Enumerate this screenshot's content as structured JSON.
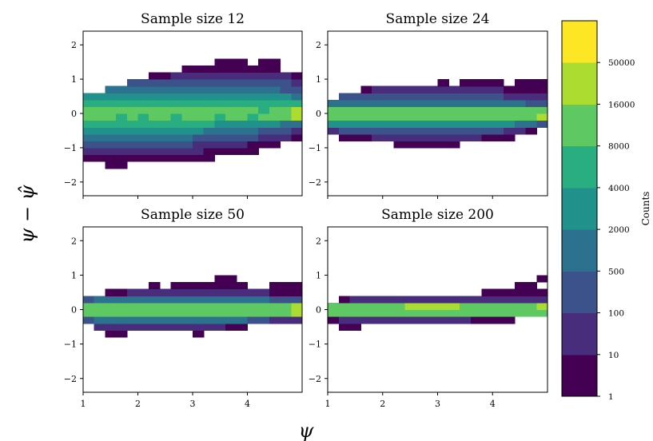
{
  "chart_data": {
    "type": "heatmap",
    "panels": [
      {
        "title": "Sample size 12",
        "x_edges": [
          1.0,
          1.2,
          1.4,
          1.6,
          1.8,
          2.0,
          2.2,
          2.4,
          2.6,
          2.8,
          3.0,
          3.2,
          3.4,
          3.6,
          3.8,
          4.0,
          4.2,
          4.4,
          4.6,
          4.8,
          5.0
        ],
        "y_edges": [
          -1.6,
          -1.4,
          -1.2,
          -1.0,
          -0.8,
          -0.6,
          -0.4,
          -0.2,
          0.0,
          0.2,
          0.4,
          0.6,
          0.8,
          1.0,
          1.2,
          1.4,
          1.6,
          1.8
        ],
        "levels": [
          [
            0,
            0,
            1,
            1,
            0,
            0,
            0,
            0,
            0,
            0,
            0,
            0,
            0,
            0,
            0,
            0,
            0,
            0,
            0,
            0
          ],
          [
            1,
            1,
            1,
            1,
            1,
            1,
            1,
            1,
            1,
            1,
            1,
            1,
            0,
            0,
            0,
            0,
            0,
            0,
            0,
            0
          ],
          [
            2,
            2,
            2,
            2,
            2,
            2,
            2,
            2,
            2,
            2,
            2,
            1,
            1,
            1,
            1,
            1,
            0,
            0,
            0,
            0
          ],
          [
            3,
            3,
            3,
            3,
            3,
            3,
            3,
            3,
            3,
            3,
            2,
            2,
            2,
            2,
            2,
            1,
            1,
            1,
            0,
            0
          ],
          [
            4,
            4,
            4,
            4,
            4,
            4,
            4,
            4,
            4,
            4,
            3,
            3,
            3,
            3,
            3,
            3,
            2,
            2,
            2,
            1
          ],
          [
            5,
            5,
            5,
            5,
            5,
            5,
            5,
            5,
            5,
            5,
            5,
            4,
            4,
            4,
            4,
            4,
            3,
            3,
            3,
            2
          ],
          [
            6,
            6,
            6,
            6,
            6,
            6,
            6,
            6,
            6,
            6,
            6,
            6,
            5,
            5,
            5,
            5,
            5,
            5,
            4,
            4
          ],
          [
            7,
            7,
            7,
            6,
            7,
            6,
            7,
            7,
            6,
            7,
            7,
            7,
            6,
            7,
            7,
            6,
            7,
            7,
            7,
            8
          ],
          [
            7,
            7,
            7,
            7,
            7,
            7,
            7,
            7,
            7,
            7,
            7,
            7,
            7,
            7,
            7,
            7,
            6,
            7,
            7,
            8
          ],
          [
            6,
            6,
            6,
            6,
            6,
            6,
            6,
            6,
            6,
            6,
            6,
            6,
            6,
            6,
            6,
            6,
            6,
            6,
            6,
            6
          ],
          [
            5,
            5,
            5,
            5,
            5,
            5,
            5,
            5,
            5,
            5,
            5,
            5,
            5,
            5,
            5,
            5,
            5,
            5,
            5,
            4
          ],
          [
            0,
            0,
            4,
            4,
            4,
            4,
            4,
            4,
            4,
            4,
            4,
            4,
            4,
            4,
            4,
            4,
            4,
            4,
            3,
            3
          ],
          [
            0,
            0,
            0,
            0,
            3,
            3,
            3,
            3,
            3,
            3,
            3,
            3,
            3,
            3,
            3,
            3,
            3,
            3,
            3,
            2
          ],
          [
            0,
            0,
            0,
            0,
            0,
            0,
            1,
            1,
            2,
            2,
            2,
            2,
            2,
            2,
            2,
            2,
            2,
            2,
            2,
            1
          ],
          [
            0,
            0,
            0,
            0,
            0,
            0,
            0,
            0,
            0,
            1,
            1,
            1,
            1,
            1,
            1,
            1,
            1,
            1,
            0,
            0
          ],
          [
            0,
            0,
            0,
            0,
            0,
            0,
            0,
            0,
            0,
            0,
            0,
            0,
            1,
            1,
            1,
            0,
            1,
            1,
            0,
            0
          ],
          [
            0,
            0,
            0,
            0,
            0,
            0,
            0,
            0,
            0,
            0,
            0,
            0,
            0,
            0,
            0,
            0,
            0,
            0,
            0,
            0
          ]
        ]
      },
      {
        "title": "Sample size 24",
        "x_edges": [
          1.0,
          1.2,
          1.4,
          1.6,
          1.8,
          2.0,
          2.2,
          2.4,
          2.6,
          2.8,
          3.0,
          3.2,
          3.4,
          3.6,
          3.8,
          4.0,
          4.2,
          4.4,
          4.6,
          4.8,
          5.0
        ],
        "y_edges": [
          -1.0,
          -0.8,
          -0.6,
          -0.4,
          -0.2,
          0.0,
          0.2,
          0.4,
          0.6,
          0.8,
          1.0,
          1.2
        ],
        "levels": [
          [
            0,
            0,
            0,
            0,
            0,
            0,
            1,
            1,
            1,
            1,
            1,
            1,
            0,
            0,
            0,
            0,
            0,
            0,
            0,
            0
          ],
          [
            0,
            1,
            1,
            1,
            2,
            2,
            2,
            2,
            2,
            2,
            2,
            2,
            2,
            2,
            1,
            1,
            1,
            0,
            0,
            0
          ],
          [
            2,
            3,
            3,
            3,
            3,
            3,
            3,
            3,
            3,
            3,
            3,
            3,
            3,
            3,
            3,
            3,
            2,
            2,
            1,
            0
          ],
          [
            5,
            5,
            5,
            5,
            5,
            5,
            5,
            5,
            5,
            5,
            5,
            5,
            5,
            5,
            5,
            5,
            5,
            4,
            4,
            3
          ],
          [
            7,
            7,
            7,
            7,
            7,
            7,
            7,
            7,
            7,
            7,
            7,
            7,
            7,
            7,
            7,
            7,
            7,
            7,
            7,
            8
          ],
          [
            7,
            7,
            7,
            7,
            7,
            7,
            7,
            7,
            7,
            7,
            7,
            7,
            7,
            7,
            7,
            7,
            7,
            7,
            7,
            7
          ],
          [
            4,
            4,
            4,
            4,
            4,
            4,
            4,
            4,
            4,
            4,
            4,
            4,
            4,
            4,
            4,
            4,
            4,
            4,
            3,
            3
          ],
          [
            0,
            3,
            3,
            3,
            3,
            3,
            3,
            3,
            3,
            3,
            3,
            3,
            3,
            3,
            3,
            3,
            2,
            2,
            2,
            2
          ],
          [
            0,
            0,
            0,
            1,
            2,
            2,
            2,
            2,
            2,
            2,
            2,
            2,
            2,
            2,
            2,
            2,
            1,
            1,
            1,
            1
          ],
          [
            0,
            0,
            0,
            0,
            0,
            0,
            0,
            0,
            0,
            0,
            1,
            0,
            1,
            1,
            1,
            1,
            0,
            1,
            1,
            1
          ],
          [
            0,
            0,
            0,
            0,
            0,
            0,
            0,
            0,
            0,
            0,
            0,
            0,
            0,
            0,
            0,
            0,
            0,
            0,
            0,
            0
          ]
        ]
      },
      {
        "title": "Sample size 50",
        "x_edges": [
          1.0,
          1.2,
          1.4,
          1.6,
          1.8,
          2.0,
          2.2,
          2.4,
          2.6,
          2.8,
          3.0,
          3.2,
          3.4,
          3.6,
          3.8,
          4.0,
          4.2,
          4.4,
          4.6,
          4.8,
          5.0
        ],
        "y_edges": [
          -0.8,
          -0.6,
          -0.4,
          -0.2,
          0.0,
          0.2,
          0.4,
          0.6,
          0.8,
          1.0
        ],
        "levels": [
          [
            0,
            0,
            1,
            1,
            0,
            0,
            0,
            0,
            0,
            0,
            1,
            0,
            0,
            0,
            0,
            0,
            0,
            0,
            0,
            0
          ],
          [
            0,
            2,
            2,
            2,
            2,
            2,
            2,
            2,
            2,
            2,
            2,
            2,
            2,
            1,
            1,
            0,
            0,
            0,
            0,
            0
          ],
          [
            3,
            4,
            4,
            4,
            4,
            4,
            4,
            4,
            4,
            4,
            4,
            4,
            4,
            4,
            4,
            3,
            3,
            2,
            2,
            2
          ],
          [
            7,
            7,
            7,
            7,
            7,
            7,
            7,
            7,
            7,
            7,
            7,
            7,
            7,
            7,
            7,
            7,
            7,
            7,
            7,
            8
          ],
          [
            7,
            7,
            7,
            7,
            7,
            7,
            7,
            7,
            7,
            7,
            7,
            7,
            7,
            7,
            7,
            7,
            7,
            7,
            7,
            8
          ],
          [
            3,
            4,
            4,
            4,
            4,
            4,
            4,
            4,
            4,
            4,
            4,
            4,
            4,
            4,
            4,
            4,
            4,
            3,
            3,
            3
          ],
          [
            0,
            0,
            1,
            1,
            2,
            2,
            2,
            2,
            2,
            2,
            2,
            2,
            2,
            2,
            2,
            2,
            2,
            1,
            1,
            1
          ],
          [
            0,
            0,
            0,
            0,
            0,
            0,
            1,
            0,
            1,
            1,
            1,
            1,
            1,
            1,
            1,
            0,
            0,
            1,
            1,
            1
          ],
          [
            0,
            0,
            0,
            0,
            0,
            0,
            0,
            0,
            0,
            0,
            0,
            0,
            1,
            1,
            0,
            0,
            0,
            0,
            0,
            0
          ]
        ]
      },
      {
        "title": "Sample size 200",
        "x_edges": [
          1.0,
          1.2,
          1.4,
          1.6,
          1.8,
          2.0,
          2.2,
          2.4,
          2.6,
          2.8,
          3.0,
          3.2,
          3.4,
          3.6,
          3.8,
          4.0,
          4.2,
          4.4,
          4.6,
          4.8,
          5.0
        ],
        "y_edges": [
          -0.6,
          -0.4,
          -0.2,
          0.0,
          0.2,
          0.4,
          0.6,
          0.8,
          1.0
        ],
        "levels": [
          [
            0,
            1,
            1,
            0,
            0,
            0,
            0,
            0,
            0,
            0,
            0,
            0,
            0,
            0,
            0,
            0,
            0,
            0,
            0,
            0
          ],
          [
            1,
            2,
            2,
            2,
            2,
            2,
            2,
            2,
            2,
            2,
            2,
            2,
            2,
            1,
            1,
            1,
            1,
            0,
            0,
            0
          ],
          [
            7,
            7,
            7,
            7,
            7,
            7,
            7,
            7,
            7,
            7,
            7,
            7,
            7,
            7,
            7,
            7,
            7,
            7,
            7,
            7
          ],
          [
            7,
            7,
            7,
            7,
            7,
            7,
            7,
            8,
            8,
            8,
            8,
            8,
            7,
            7,
            7,
            7,
            7,
            7,
            7,
            8
          ],
          [
            0,
            1,
            2,
            2,
            2,
            2,
            2,
            2,
            2,
            2,
            2,
            2,
            2,
            2,
            2,
            2,
            2,
            2,
            2,
            2
          ],
          [
            0,
            0,
            0,
            0,
            0,
            0,
            0,
            0,
            0,
            0,
            0,
            0,
            0,
            0,
            1,
            1,
            1,
            1,
            1,
            1
          ],
          [
            0,
            0,
            0,
            0,
            0,
            0,
            0,
            0,
            0,
            0,
            0,
            0,
            0,
            0,
            0,
            0,
            0,
            1,
            1,
            0
          ],
          [
            0,
            0,
            0,
            0,
            0,
            0,
            0,
            0,
            0,
            0,
            0,
            0,
            0,
            0,
            0,
            0,
            0,
            0,
            0,
            1
          ]
        ]
      }
    ],
    "xlabel": "ψ",
    "ylabel": "ψ − ψ̂",
    "xlim": [
      1,
      5
    ],
    "ylim": [
      -2.4,
      2.4
    ],
    "x_ticks": [
      1,
      2,
      3,
      4
    ],
    "x_tick_labels": [
      "1",
      "2",
      "3",
      "4"
    ],
    "y_ticks": [
      -2,
      -1,
      0,
      1,
      2
    ],
    "y_tick_labels": [
      "−2",
      "−1",
      "0",
      "1",
      "2"
    ],
    "colorbar": {
      "label": "Counts",
      "boundaries": [
        1,
        10,
        100,
        500,
        2000,
        4000,
        8000,
        16000,
        50000
      ],
      "tick_labels": [
        "1",
        "10",
        "100",
        "500",
        "2000",
        "4000",
        "8000",
        "16000",
        "50000"
      ],
      "colors": [
        "#440154",
        "#472d7b",
        "#3b528b",
        "#2c728e",
        "#21918c",
        "#28ae80",
        "#5ec962",
        "#addc30",
        "#fde725"
      ]
    },
    "grid": false,
    "colormap": "viridis"
  }
}
